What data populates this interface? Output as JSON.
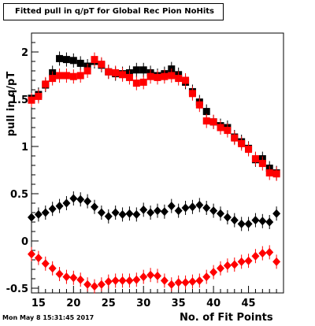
{
  "title": "Fitted pull in q/pT for Global Rec Pion NoHits",
  "timestamp": "Mon May  8 15:31:45 2017",
  "chart_data": {
    "type": "scatter",
    "title": "Fitted pull in q/pT for Global Rec Pion NoHits",
    "xlabel": "No. of Fit Points",
    "ylabel": "pull in q/pT",
    "xlim": [
      14,
      50
    ],
    "ylim": [
      -0.55,
      2.2
    ],
    "x_ticks": [
      15,
      20,
      25,
      30,
      35,
      40,
      45
    ],
    "y_ticks": [
      -0.5,
      0,
      0.5,
      1,
      1.5,
      2
    ],
    "y_tick_labels": [
      "-0.5",
      "0",
      "0.5",
      "1",
      "1.5",
      "2"
    ],
    "grid": false,
    "legend": "none",
    "series": [
      {
        "color": "#000000",
        "marker": "square",
        "x": [
          14,
          15,
          16,
          17,
          18,
          19,
          20,
          21,
          22,
          23,
          24,
          25,
          26,
          27,
          28,
          29,
          30,
          31,
          32,
          33,
          34,
          35,
          36,
          37,
          38,
          39,
          40,
          41,
          42,
          43,
          44,
          45,
          46,
          47,
          48,
          49
        ],
        "y": [
          1.51,
          1.55,
          1.65,
          1.78,
          1.93,
          1.92,
          1.91,
          1.88,
          1.85,
          1.9,
          1.86,
          1.79,
          1.77,
          1.77,
          1.78,
          1.81,
          1.81,
          1.78,
          1.75,
          1.77,
          1.82,
          1.76,
          1.68,
          1.58,
          1.47,
          1.37,
          1.26,
          1.22,
          1.2,
          1.1,
          1.05,
          0.98,
          0.86,
          0.87,
          0.77,
          0.72
        ]
      },
      {
        "color": "#ff0000",
        "marker": "square",
        "x": [
          14,
          15,
          16,
          17,
          18,
          19,
          20,
          21,
          22,
          23,
          24,
          25,
          26,
          27,
          28,
          29,
          30,
          31,
          32,
          33,
          34,
          35,
          36,
          37,
          38,
          39,
          40,
          41,
          42,
          43,
          44,
          45,
          46,
          47,
          48,
          49
        ],
        "y": [
          1.49,
          1.53,
          1.66,
          1.72,
          1.75,
          1.75,
          1.74,
          1.75,
          1.8,
          1.92,
          1.87,
          1.79,
          1.78,
          1.76,
          1.73,
          1.67,
          1.68,
          1.74,
          1.73,
          1.74,
          1.75,
          1.72,
          1.7,
          1.56,
          1.44,
          1.27,
          1.26,
          1.2,
          1.17,
          1.09,
          1.03,
          0.97,
          0.87,
          0.82,
          0.72,
          0.71
        ]
      },
      {
        "color": "#000000",
        "marker": "diamond",
        "x": [
          14,
          15,
          16,
          17,
          18,
          19,
          20,
          21,
          22,
          23,
          24,
          25,
          26,
          27,
          28,
          29,
          30,
          31,
          32,
          33,
          34,
          35,
          36,
          37,
          38,
          39,
          40,
          41,
          42,
          43,
          44,
          45,
          46,
          47,
          48,
          49
        ],
        "y": [
          0.25,
          0.28,
          0.3,
          0.34,
          0.37,
          0.4,
          0.45,
          0.44,
          0.42,
          0.36,
          0.3,
          0.26,
          0.3,
          0.28,
          0.29,
          0.28,
          0.33,
          0.3,
          0.32,
          0.31,
          0.37,
          0.32,
          0.35,
          0.36,
          0.38,
          0.35,
          0.32,
          0.29,
          0.25,
          0.22,
          0.18,
          0.18,
          0.22,
          0.21,
          0.2,
          0.29
        ]
      },
      {
        "color": "#ff0000",
        "marker": "diamond",
        "x": [
          14,
          15,
          16,
          17,
          18,
          19,
          20,
          21,
          22,
          23,
          24,
          25,
          26,
          27,
          28,
          29,
          30,
          31,
          32,
          33,
          34,
          35,
          36,
          37,
          38,
          39,
          40,
          41,
          42,
          43,
          44,
          45,
          46,
          47,
          48,
          49
        ],
        "y": [
          -0.14,
          -0.18,
          -0.24,
          -0.29,
          -0.35,
          -0.38,
          -0.39,
          -0.41,
          -0.46,
          -0.48,
          -0.46,
          -0.43,
          -0.42,
          -0.42,
          -0.42,
          -0.41,
          -0.38,
          -0.36,
          -0.37,
          -0.42,
          -0.46,
          -0.44,
          -0.44,
          -0.43,
          -0.42,
          -0.38,
          -0.33,
          -0.29,
          -0.26,
          -0.25,
          -0.22,
          -0.21,
          -0.16,
          -0.13,
          -0.12,
          -0.22
        ]
      }
    ]
  }
}
